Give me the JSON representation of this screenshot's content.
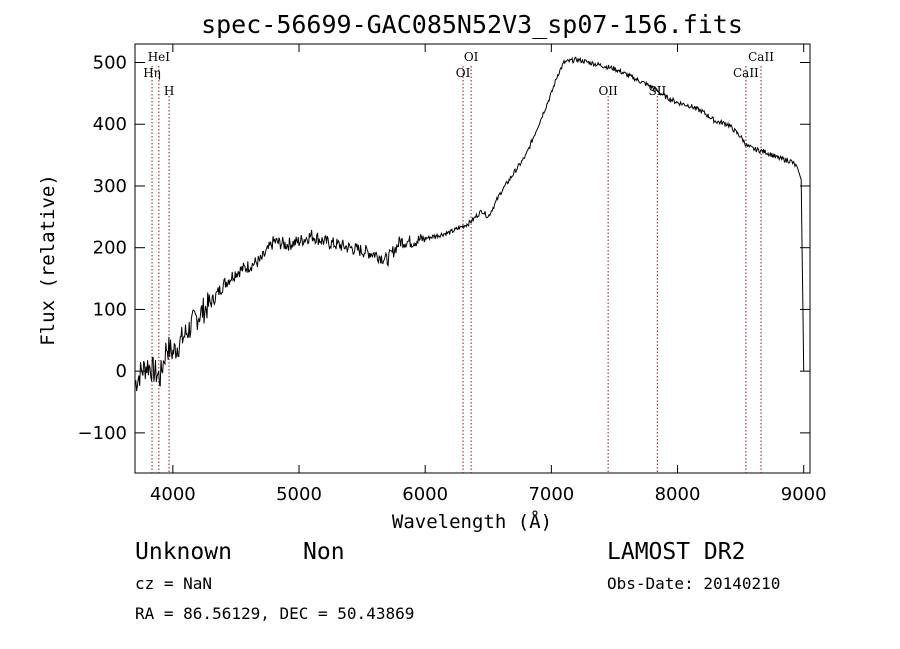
{
  "chart_data": {
    "type": "line",
    "title": "spec-56699-GAC085N52V3_sp07-156.fits",
    "xlabel": "Wavelength (Å)",
    "ylabel": "Flux (relative)",
    "xlim": [
      3700,
      9050
    ],
    "ylim": [
      -165,
      530
    ],
    "x_ticks": [
      4000,
      5000,
      6000,
      7000,
      8000,
      9000
    ],
    "y_ticks": [
      -100,
      0,
      100,
      200,
      300,
      400,
      500
    ],
    "grid": false,
    "line_color": "#000000",
    "marker_color": "#8b1a1a",
    "series": [
      {
        "x": [
          3700,
          3750,
          3800,
          3850,
          3900,
          3950,
          4000,
          4100,
          4200,
          4300,
          4400,
          4500,
          4600,
          4700,
          4750,
          4800,
          4900,
          5000,
          5100,
          5200,
          5300,
          5400,
          5500,
          5600,
          5700,
          5750,
          5800,
          5900,
          6000,
          6100,
          6200,
          6300,
          6350,
          6400,
          6450,
          6500,
          6550,
          6600,
          6700,
          6800,
          6900,
          7000,
          7050,
          7100,
          7200,
          7300,
          7400,
          7500,
          7600,
          7700,
          7800,
          7900,
          8000,
          8100,
          8200,
          8300,
          8400,
          8500,
          8550,
          8600,
          8700,
          8800,
          8900,
          8950,
          8980,
          9000
        ],
        "y": [
          -20,
          0,
          10,
          0,
          -10,
          40,
          30,
          60,
          90,
          110,
          140,
          160,
          170,
          180,
          195,
          210,
          205,
          210,
          220,
          210,
          205,
          200,
          195,
          190,
          180,
          195,
          210,
          210,
          215,
          220,
          225,
          235,
          240,
          250,
          260,
          250,
          270,
          290,
          320,
          350,
          400,
          450,
          480,
          500,
          505,
          500,
          495,
          490,
          480,
          470,
          460,
          445,
          435,
          430,
          420,
          405,
          400,
          380,
          365,
          360,
          355,
          345,
          340,
          330,
          310,
          0
        ]
      }
    ],
    "line_markers": [
      {
        "label": "HeI",
        "x": 3889,
        "row": 1
      },
      {
        "label": "Hη",
        "x": 3835,
        "row": 2
      },
      {
        "label": "H",
        "x": 3970,
        "row": 3
      },
      {
        "label": "OI",
        "x": 6364,
        "row": 1
      },
      {
        "label": "OI",
        "x": 6300,
        "row": 2
      },
      {
        "label": "OII",
        "x": 7450,
        "row": 3
      },
      {
        "label": "SII",
        "x": 7840,
        "row": 3
      },
      {
        "label": "CaII",
        "x": 8662,
        "row": 1
      },
      {
        "label": "CaII",
        "x": 8542,
        "row": 2
      }
    ]
  },
  "info": {
    "object_class": "Unknown",
    "object_subclass": "Non",
    "survey": "LAMOST DR2",
    "redshift_line": "cz = NaN",
    "obs_date_line": "Obs-Date: 20140210",
    "coords_line": "RA =  86.56129, DEC =  50.43869"
  }
}
